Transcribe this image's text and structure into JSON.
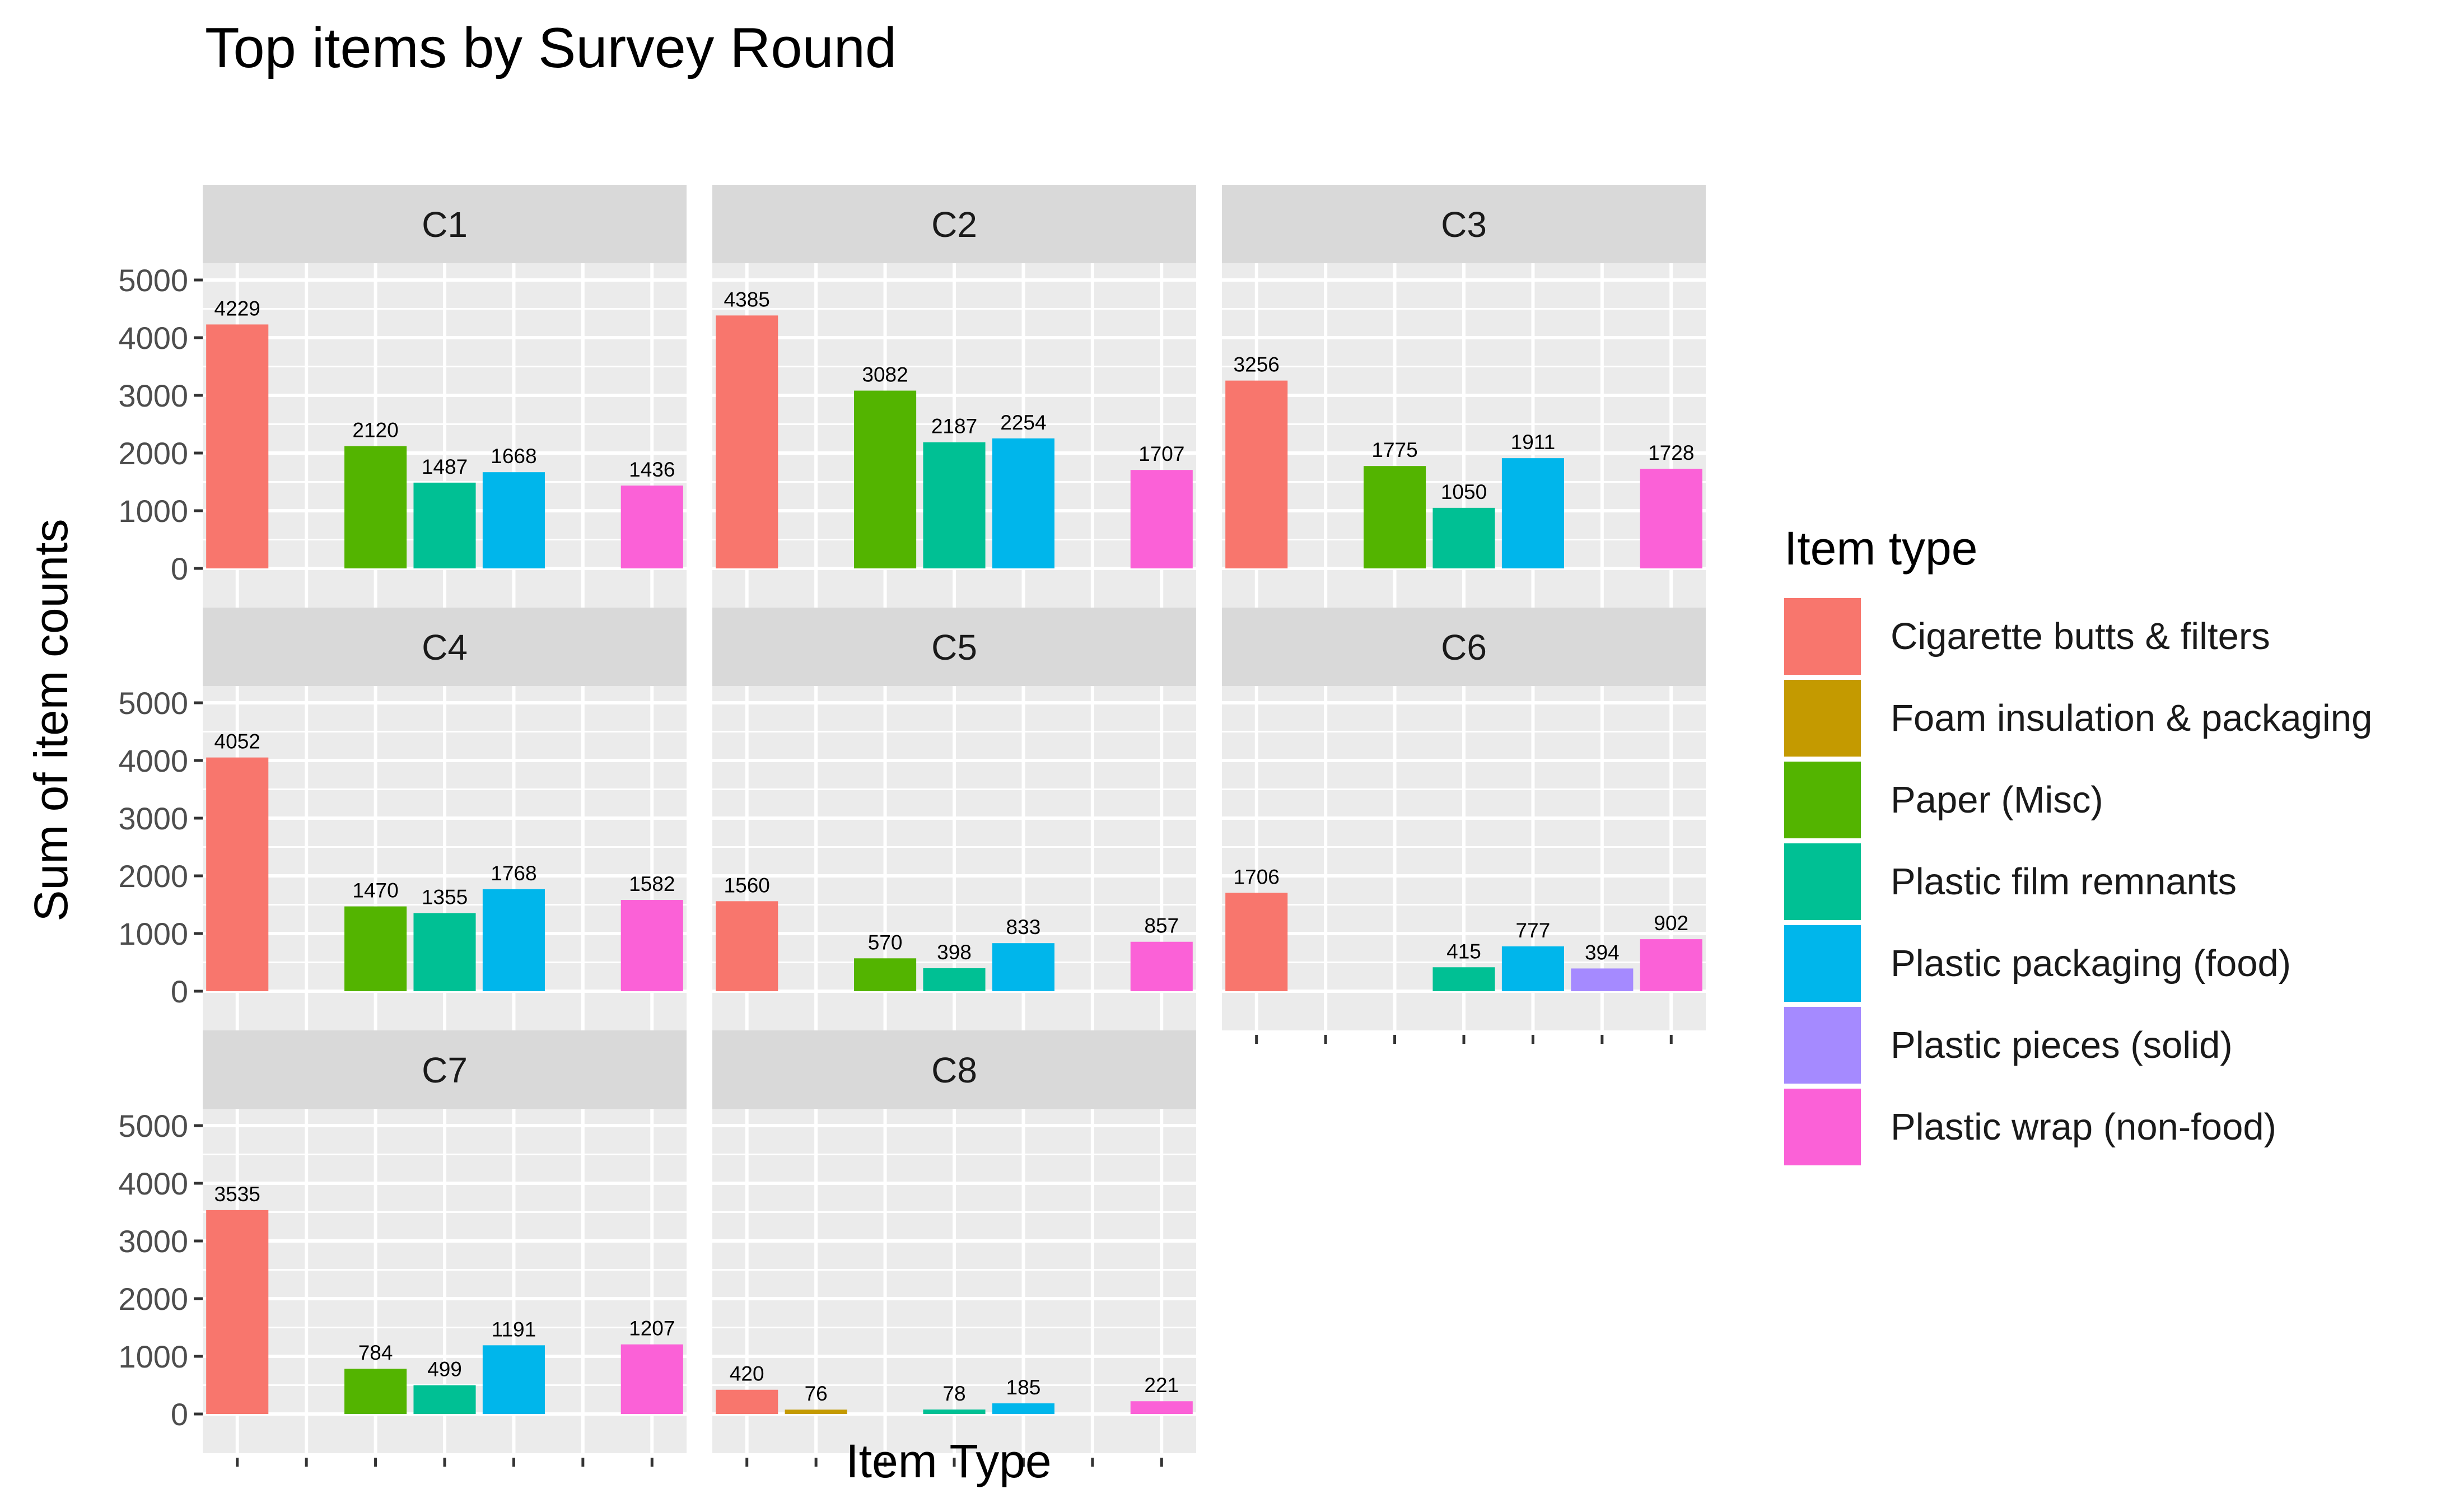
{
  "chart_data": {
    "type": "bar",
    "title": "Top items by Survey Round",
    "xlabel": "Item Type",
    "ylabel": "Sum of item counts",
    "ylim": [
      0,
      5000
    ],
    "y_ticks": [
      "0",
      "1000",
      "2000",
      "3000",
      "4000",
      "5000"
    ],
    "grid": true,
    "legend_title": "Item type",
    "legend_position": "right",
    "categories": [
      "Cigarette butts & filters",
      "Foam insulation & packaging",
      "Paper (Misc)",
      "Plastic film remnants",
      "Plastic packaging (food)",
      "Plastic pieces (solid)",
      "Plastic wrap (non-food)"
    ],
    "colors": [
      "#F8766D",
      "#C49A00",
      "#53B400",
      "#00C094",
      "#00B6EB",
      "#A58AFF",
      "#FB61D7"
    ],
    "facets": [
      {
        "name": "C1",
        "values": [
          4229,
          null,
          2120,
          1487,
          1668,
          null,
          1436
        ],
        "labels": [
          "4229",
          "",
          "2120",
          "1487",
          "1668",
          "",
          "1436"
        ]
      },
      {
        "name": "C2",
        "values": [
          4385,
          null,
          3082,
          2187,
          2254,
          null,
          1707
        ],
        "labels": [
          "4385",
          "",
          "3082",
          "2187",
          "2254",
          "",
          "1707"
        ]
      },
      {
        "name": "C3",
        "values": [
          3256,
          null,
          1775,
          1050,
          1911,
          null,
          1728
        ],
        "labels": [
          "3256",
          "",
          "1775",
          "1050",
          "1911",
          "",
          "1728"
        ]
      },
      {
        "name": "C4",
        "values": [
          4052,
          null,
          1470,
          1355,
          1768,
          null,
          1582
        ],
        "labels": [
          "4052",
          "",
          "1470",
          "1355",
          "1768",
          "",
          "1582"
        ]
      },
      {
        "name": "C5",
        "values": [
          1560,
          null,
          570,
          398,
          833,
          null,
          857
        ],
        "labels": [
          "1560",
          "",
          "570",
          "398",
          "833",
          "",
          "857"
        ]
      },
      {
        "name": "C6",
        "values": [
          1706,
          null,
          null,
          415,
          777,
          394,
          902
        ],
        "labels": [
          "1706",
          "",
          "",
          "415",
          "777",
          "394",
          "902"
        ]
      },
      {
        "name": "C7",
        "values": [
          3535,
          null,
          784,
          499,
          1191,
          null,
          1207
        ],
        "labels": [
          "3535",
          "",
          "784",
          "499",
          "1191",
          "",
          "1207"
        ]
      },
      {
        "name": "C8",
        "values": [
          420,
          76,
          null,
          78,
          185,
          null,
          221
        ],
        "labels": [
          "420",
          "76",
          "",
          "78",
          "185",
          "",
          "221"
        ]
      }
    ]
  }
}
